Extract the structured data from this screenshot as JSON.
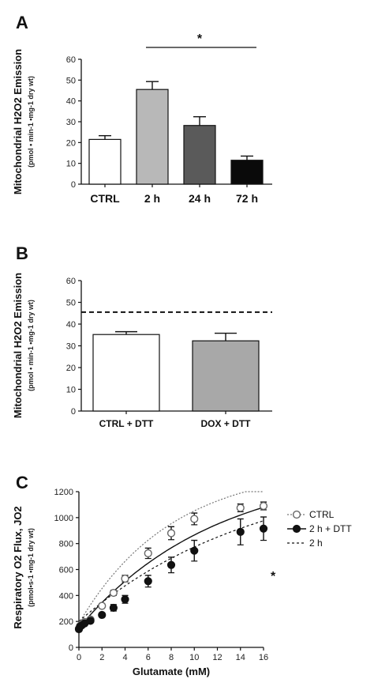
{
  "chart_data": [
    {
      "panel": "A",
      "type": "bar",
      "ylabel_line1": "Mitochondrial H2O2 Emission",
      "ylabel_line2": "(pmol • min-1 •mg-1 dry wt)",
      "ylim": [
        0,
        60
      ],
      "yticks": [
        "0",
        "10",
        "20",
        "30",
        "40",
        "50",
        "60"
      ],
      "categories": [
        "CTRL",
        "2 h",
        "24 h",
        "72 h"
      ],
      "values": [
        21.5,
        45.5,
        28.2,
        11.5
      ],
      "errors": [
        1.8,
        3.8,
        4.2,
        2.0
      ],
      "colors": [
        "#ffffff",
        "#b8b8b8",
        "#5a5a5a",
        "#0a0a0a"
      ],
      "annotation": "*"
    },
    {
      "panel": "B",
      "type": "bar",
      "ylabel_line1": "Mitochondrial H2O2 Emission",
      "ylabel_line2": "(pmol • min-1 •mg-1 dry wt)",
      "ylim": [
        0,
        60
      ],
      "yticks": [
        "0",
        "10",
        "20",
        "30",
        "40",
        "50",
        "60"
      ],
      "categories": [
        "CTRL + DTT",
        "DOX + DTT"
      ],
      "values": [
        35.2,
        32.3
      ],
      "errors": [
        1.3,
        3.5
      ],
      "colors": [
        "#ffffff",
        "#a8a8a8"
      ],
      "reference_line": 45.5
    },
    {
      "panel": "C",
      "type": "scatter",
      "xlabel": "Glutamate (mM)",
      "ylabel_line1": "Respiratory O2 Flux, JO2",
      "ylabel_line2": "(pmol•s-1 •mg-1 dry wt)",
      "xlim": [
        0,
        16
      ],
      "ylim": [
        0,
        1200
      ],
      "xticks": [
        "0",
        "2",
        "4",
        "6",
        "8",
        "10",
        "12",
        "14",
        "16"
      ],
      "yticks": [
        "0",
        "200",
        "400",
        "600",
        "800",
        "1000",
        "1200"
      ],
      "x": [
        0,
        0.1,
        0.25,
        0.5,
        1,
        2,
        3,
        4,
        6,
        8,
        10,
        14,
        16
      ],
      "series": [
        {
          "name": "CTRL",
          "values": [
            145,
            165,
            180,
            195,
            215,
            320,
            420,
            530,
            725,
            880,
            990,
            1075,
            1090
          ],
          "errors": [
            10,
            10,
            10,
            10,
            12,
            15,
            20,
            25,
            40,
            50,
            45,
            30,
            30
          ],
          "marker": "open-circle",
          "fit": [
            185,
            0.125
          ]
        },
        {
          "name": "2 h + DTT",
          "values": [
            140,
            160,
            170,
            185,
            205,
            250,
            305,
            370,
            510,
            635,
            745,
            890,
            915
          ],
          "errors": [
            10,
            10,
            10,
            10,
            12,
            15,
            25,
            30,
            45,
            60,
            80,
            100,
            90
          ],
          "marker": "filled-circle",
          "fit": [
            150,
            0.085
          ]
        },
        {
          "name": "2 h",
          "marker": "dashed-line",
          "fit": [
            200,
            0.065
          ]
        }
      ],
      "legend": [
        "CTRL",
        "2 h + DTT",
        "2 h"
      ],
      "annotation": "*"
    }
  ]
}
